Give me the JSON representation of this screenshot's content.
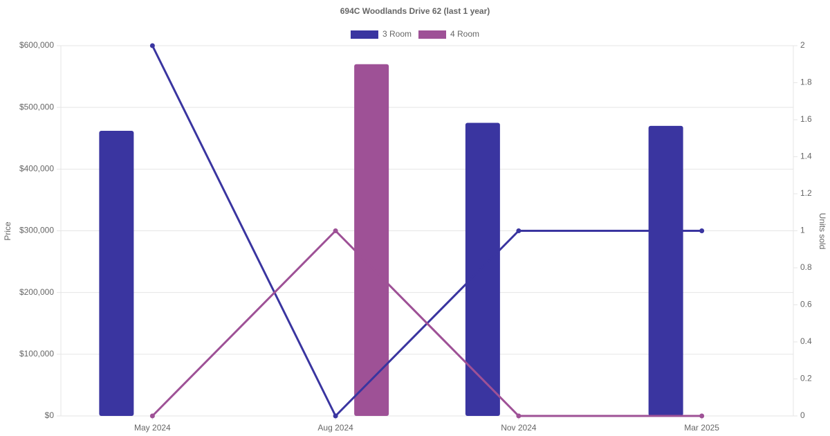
{
  "chart_data": {
    "type": "bar-line",
    "title": "694C Woodlands Drive 62 (last 1 year)",
    "categories": [
      "May 2024",
      "Aug 2024",
      "Nov 2024",
      "Mar 2025"
    ],
    "series": [
      {
        "name": "3 Room",
        "color": "#3a35a0",
        "values": [
          462000,
          null,
          475000,
          470000
        ],
        "y2_values": [
          2,
          0,
          1,
          1
        ]
      },
      {
        "name": "4 Room",
        "color": "#9e5196",
        "values": [
          null,
          570000,
          null,
          null
        ],
        "y2_values": [
          0,
          1,
          0,
          0
        ]
      }
    ],
    "ylabel": "Price",
    "y2label": "Units sold",
    "ylim": [
      0,
      600000
    ],
    "yticks": [
      {
        "value": 0,
        "label": "$0"
      },
      {
        "value": 100000,
        "label": "$100,000"
      },
      {
        "value": 200000,
        "label": "$200,000"
      },
      {
        "value": 300000,
        "label": "$300,000"
      },
      {
        "value": 400000,
        "label": "$400,000"
      },
      {
        "value": 500000,
        "label": "$500,000"
      },
      {
        "value": 600000,
        "label": "$600,000"
      }
    ],
    "y2lim": [
      0,
      2
    ],
    "y2ticks": [
      0,
      0.2,
      0.4,
      0.6,
      0.8,
      1,
      1.2,
      1.4,
      1.6,
      1.8,
      2
    ],
    "grid": true
  }
}
